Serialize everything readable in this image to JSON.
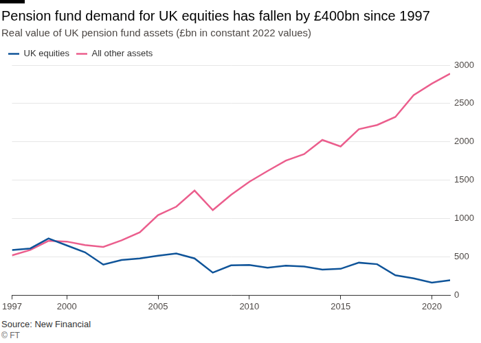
{
  "chart_data": {
    "type": "line",
    "title": "Pension fund demand for UK equities has fallen by £400bn since 1997",
    "subtitle": "Real value of UK pension fund assets (£bn in constant 2022 values)",
    "source": "Source: New Financial",
    "credit": "© FT",
    "x": [
      1997,
      1998,
      1999,
      2000,
      2001,
      2002,
      2003,
      2004,
      2005,
      2006,
      2007,
      2008,
      2009,
      2010,
      2011,
      2012,
      2013,
      2014,
      2015,
      2016,
      2017,
      2018,
      2019,
      2020,
      2021
    ],
    "series": [
      {
        "name": "UK equities",
        "color": "#0f5499",
        "values": [
          590,
          610,
          740,
          650,
          560,
          400,
          460,
          480,
          515,
          545,
          480,
          295,
          390,
          395,
          360,
          385,
          375,
          335,
          345,
          425,
          405,
          260,
          220,
          165,
          195
        ]
      },
      {
        "name": "All other assets",
        "color": "#eb5e8d",
        "values": [
          520,
          590,
          710,
          700,
          655,
          630,
          715,
          820,
          1045,
          1155,
          1365,
          1110,
          1310,
          1480,
          1620,
          1755,
          1840,
          2025,
          1940,
          2165,
          2220,
          2325,
          2610,
          2760,
          2890
        ]
      }
    ],
    "xlim": [
      1997,
      2021
    ],
    "xticks": [
      1997,
      2000,
      2005,
      2010,
      2015,
      2020
    ],
    "ylim": [
      0,
      3000
    ],
    "yticks": [
      0,
      500,
      1000,
      1500,
      2000,
      2500,
      3000
    ],
    "grid": true,
    "legend": "top-left"
  }
}
